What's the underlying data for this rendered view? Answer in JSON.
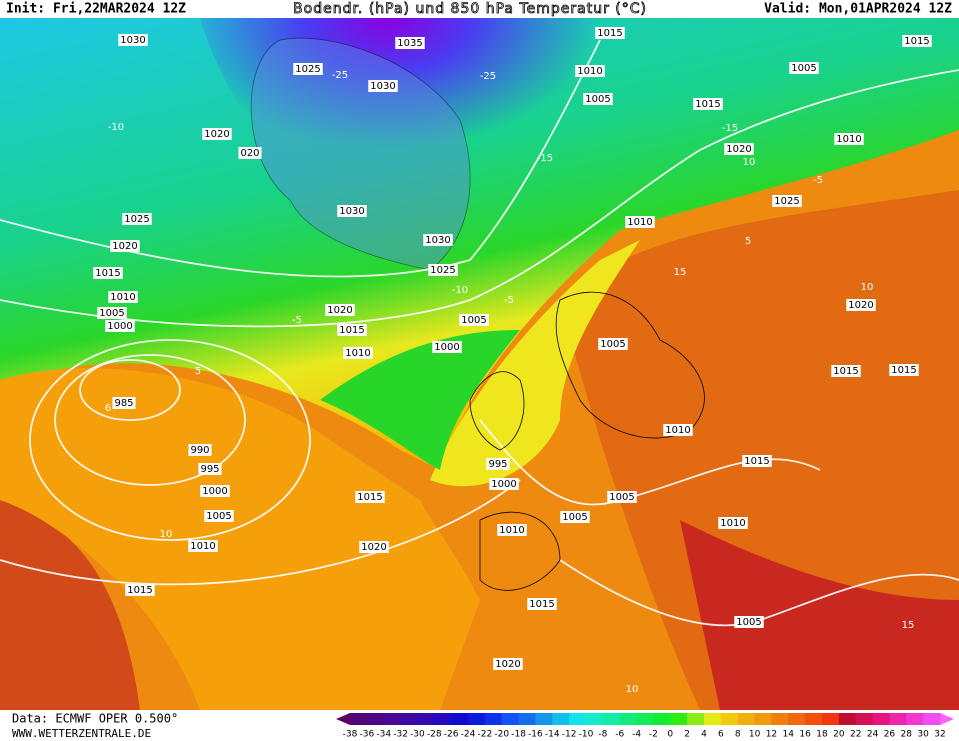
{
  "header": {
    "init": "Init: Fri,22MAR2024 12Z",
    "title": "Bodendr. (hPa) und 850 hPa Temperatur (°C)",
    "valid": "Valid: Mon,01APR2024 12Z"
  },
  "isobar_labels": [
    "1030",
    "1035",
    "1015",
    "1015",
    "1025",
    "1030",
    "1010",
    "1005",
    "1005",
    "1015",
    "1020",
    "020",
    "1010",
    "1020",
    "1025",
    "1030",
    "1010",
    "1025",
    "1030",
    "1020",
    "1025",
    "1015",
    "1010",
    "1005",
    "1000",
    "1020",
    "1015",
    "1005",
    "1010",
    "1000",
    "1005",
    "1020",
    "1015",
    "1015",
    "985",
    "1010",
    "1015",
    "990",
    "995",
    "995",
    "1000",
    "1000",
    "1015",
    "1005",
    "1005",
    "1005",
    "1010",
    "1010",
    "1010",
    "1020",
    "1015",
    "1015",
    "1005",
    "1020"
  ],
  "isotherm_labels": [
    "-25",
    "-25",
    "-15",
    "-15",
    "-10",
    "-5",
    "-5",
    "5",
    "5",
    "10",
    "10",
    "15",
    "-10",
    "-5",
    "10",
    "6",
    "15",
    "10"
  ],
  "colorbar": {
    "ticks": [
      -38,
      -36,
      -34,
      -32,
      -30,
      -28,
      -26,
      -24,
      -22,
      -20,
      -18,
      -16,
      -14,
      -12,
      -10,
      -8,
      -6,
      -4,
      -2,
      0,
      2,
      4,
      6,
      8,
      10,
      12,
      14,
      16,
      18,
      20,
      22,
      24,
      26,
      28,
      30,
      32
    ]
  },
  "footer": {
    "source": "Data: ECMWF OPER 0.500°",
    "website": "WWW.WETTERZENTRALE.DE"
  }
}
